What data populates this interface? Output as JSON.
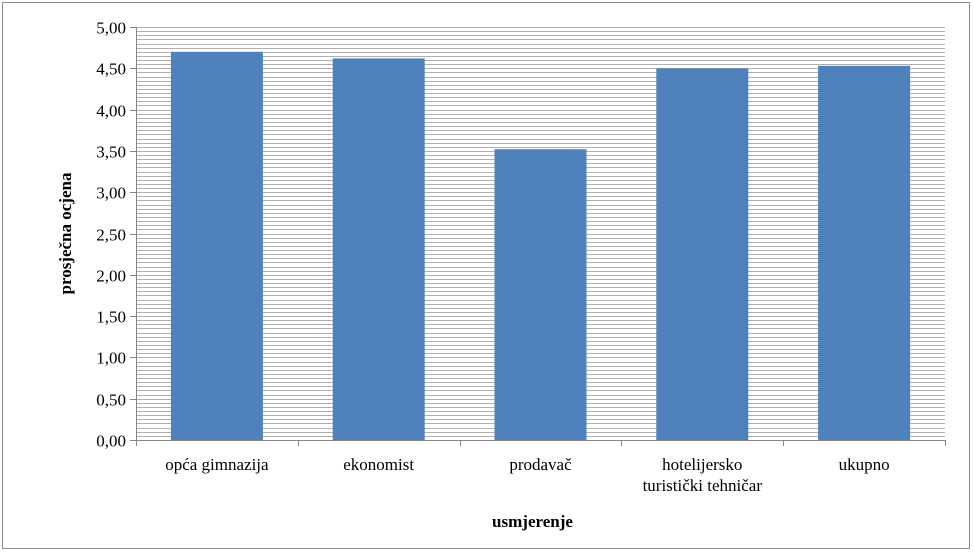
{
  "chart_data": {
    "type": "bar",
    "title": "",
    "xlabel": "usmjerenje",
    "ylabel": "prosječna ocjena",
    "categories": [
      [
        "opća gimnazija"
      ],
      [
        "ekonomist"
      ],
      [
        "prodavač"
      ],
      [
        "hotelijersko",
        "turistički tehničar"
      ],
      [
        "ukupno"
      ]
    ],
    "values": [
      4.7,
      4.62,
      3.52,
      4.5,
      4.53
    ],
    "ylim": [
      0,
      5
    ],
    "ytick_step": 0.5,
    "yticks": [
      "0,00",
      "0,50",
      "1,00",
      "1,50",
      "2,00",
      "2,50",
      "3,00",
      "3,50",
      "4,00",
      "4,50",
      "5,00"
    ],
    "grid": true,
    "bar_color": "#4f81bd",
    "legend": "none"
  }
}
